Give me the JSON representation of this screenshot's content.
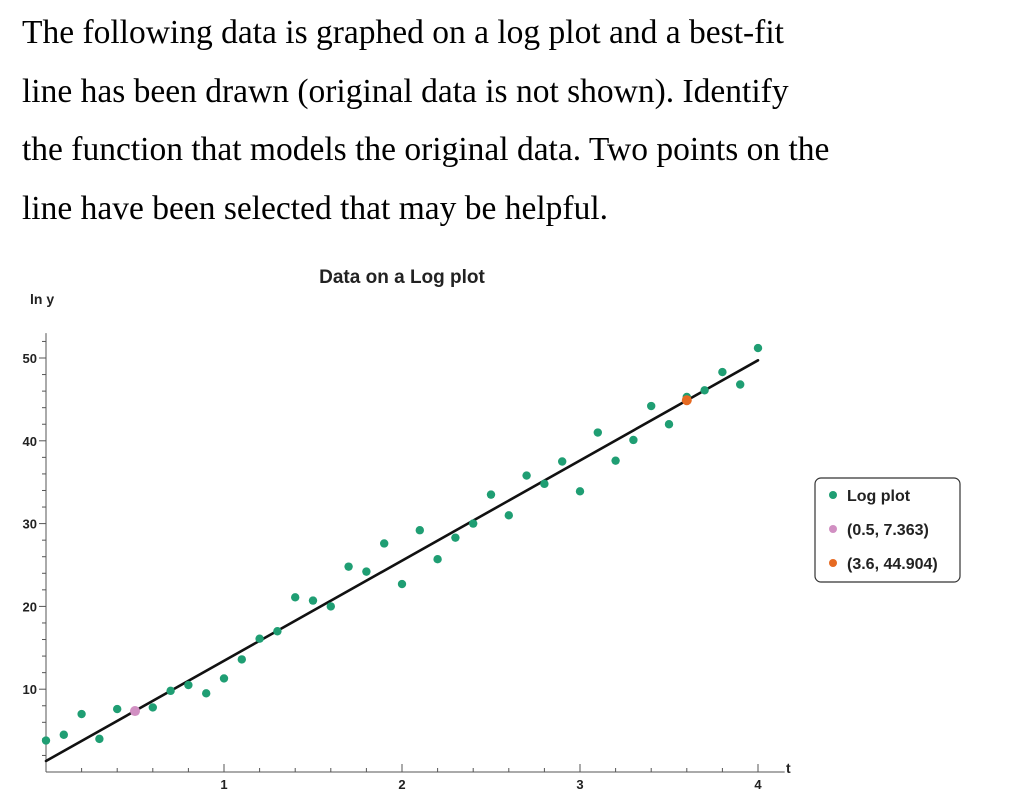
{
  "question": {
    "lines": [
      "The following data is graphed on a log plot and a best-fit",
      "line has been drawn (original data is not shown). Identify",
      "the function that models the original data. Two points on the",
      "line have been selected that may be helpful."
    ]
  },
  "chart_data": {
    "type": "scatter",
    "title": "Data on a Log plot",
    "xlabel": "t",
    "ylabel": "ln y",
    "xlim": [
      0,
      4.15
    ],
    "ylim": [
      0,
      53
    ],
    "x_ticks": [
      1,
      2,
      3,
      4
    ],
    "x_tick_labels": [
      "1",
      "2",
      "3",
      "4"
    ],
    "y_ticks": [
      10,
      20,
      30,
      40,
      50
    ],
    "y_tick_labels": [
      "10",
      "20",
      "30",
      "40",
      "50"
    ],
    "legend_position": "right",
    "fit_line": {
      "x": [
        0,
        4
      ],
      "y": [
        1.33,
        49.72
      ]
    },
    "series": [
      {
        "name": "Log plot",
        "color": "#1f9e73",
        "points": [
          [
            0.0,
            3.8
          ],
          [
            0.1,
            4.5
          ],
          [
            0.2,
            7.0
          ],
          [
            0.3,
            4.0
          ],
          [
            0.4,
            7.6
          ],
          [
            0.6,
            7.8
          ],
          [
            0.7,
            9.8
          ],
          [
            0.8,
            10.5
          ],
          [
            0.9,
            9.5
          ],
          [
            1.0,
            11.3
          ],
          [
            1.1,
            13.6
          ],
          [
            1.2,
            16.1
          ],
          [
            1.3,
            17.0
          ],
          [
            1.4,
            21.1
          ],
          [
            1.5,
            20.7
          ],
          [
            1.6,
            20.0
          ],
          [
            1.7,
            24.8
          ],
          [
            1.8,
            24.2
          ],
          [
            1.9,
            27.6
          ],
          [
            2.0,
            22.7
          ],
          [
            2.1,
            29.2
          ],
          [
            2.2,
            25.7
          ],
          [
            2.3,
            28.3
          ],
          [
            2.4,
            30.0
          ],
          [
            2.5,
            33.5
          ],
          [
            2.6,
            31.0
          ],
          [
            2.7,
            35.8
          ],
          [
            2.8,
            34.8
          ],
          [
            2.9,
            37.5
          ],
          [
            3.0,
            33.9
          ],
          [
            3.1,
            41.0
          ],
          [
            3.2,
            37.6
          ],
          [
            3.3,
            40.1
          ],
          [
            3.4,
            44.2
          ],
          [
            3.5,
            42.0
          ],
          [
            3.6,
            45.3
          ],
          [
            3.7,
            46.1
          ],
          [
            3.8,
            48.3
          ],
          [
            3.9,
            46.8
          ],
          [
            4.0,
            51.2
          ]
        ]
      },
      {
        "name": "(0.5, 7.363)",
        "color": "#d18fc2",
        "points": [
          [
            0.5,
            7.363
          ]
        ]
      },
      {
        "name": "(3.6, 44.904)",
        "color": "#e66a22",
        "points": [
          [
            3.6,
            44.904
          ]
        ]
      }
    ]
  }
}
